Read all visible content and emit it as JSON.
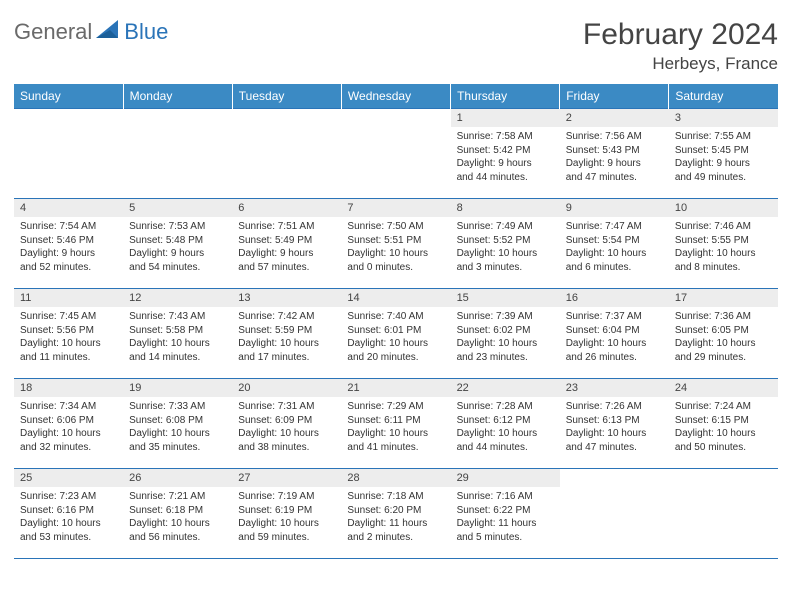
{
  "brand": {
    "general": "General",
    "blue": "Blue"
  },
  "title": "February 2024",
  "location": "Herbeys, France",
  "header_bg": "#3b8ac4",
  "accent_color": "#2a74b8",
  "daybar_bg": "#ededed",
  "text_color": "#333333",
  "days_of_week": [
    "Sunday",
    "Monday",
    "Tuesday",
    "Wednesday",
    "Thursday",
    "Friday",
    "Saturday"
  ],
  "weeks": [
    [
      null,
      null,
      null,
      null,
      {
        "n": "1",
        "sr": "Sunrise: 7:58 AM",
        "ss": "Sunset: 5:42 PM",
        "d1": "Daylight: 9 hours",
        "d2": "and 44 minutes."
      },
      {
        "n": "2",
        "sr": "Sunrise: 7:56 AM",
        "ss": "Sunset: 5:43 PM",
        "d1": "Daylight: 9 hours",
        "d2": "and 47 minutes."
      },
      {
        "n": "3",
        "sr": "Sunrise: 7:55 AM",
        "ss": "Sunset: 5:45 PM",
        "d1": "Daylight: 9 hours",
        "d2": "and 49 minutes."
      }
    ],
    [
      {
        "n": "4",
        "sr": "Sunrise: 7:54 AM",
        "ss": "Sunset: 5:46 PM",
        "d1": "Daylight: 9 hours",
        "d2": "and 52 minutes."
      },
      {
        "n": "5",
        "sr": "Sunrise: 7:53 AM",
        "ss": "Sunset: 5:48 PM",
        "d1": "Daylight: 9 hours",
        "d2": "and 54 minutes."
      },
      {
        "n": "6",
        "sr": "Sunrise: 7:51 AM",
        "ss": "Sunset: 5:49 PM",
        "d1": "Daylight: 9 hours",
        "d2": "and 57 minutes."
      },
      {
        "n": "7",
        "sr": "Sunrise: 7:50 AM",
        "ss": "Sunset: 5:51 PM",
        "d1": "Daylight: 10 hours",
        "d2": "and 0 minutes."
      },
      {
        "n": "8",
        "sr": "Sunrise: 7:49 AM",
        "ss": "Sunset: 5:52 PM",
        "d1": "Daylight: 10 hours",
        "d2": "and 3 minutes."
      },
      {
        "n": "9",
        "sr": "Sunrise: 7:47 AM",
        "ss": "Sunset: 5:54 PM",
        "d1": "Daylight: 10 hours",
        "d2": "and 6 minutes."
      },
      {
        "n": "10",
        "sr": "Sunrise: 7:46 AM",
        "ss": "Sunset: 5:55 PM",
        "d1": "Daylight: 10 hours",
        "d2": "and 8 minutes."
      }
    ],
    [
      {
        "n": "11",
        "sr": "Sunrise: 7:45 AM",
        "ss": "Sunset: 5:56 PM",
        "d1": "Daylight: 10 hours",
        "d2": "and 11 minutes."
      },
      {
        "n": "12",
        "sr": "Sunrise: 7:43 AM",
        "ss": "Sunset: 5:58 PM",
        "d1": "Daylight: 10 hours",
        "d2": "and 14 minutes."
      },
      {
        "n": "13",
        "sr": "Sunrise: 7:42 AM",
        "ss": "Sunset: 5:59 PM",
        "d1": "Daylight: 10 hours",
        "d2": "and 17 minutes."
      },
      {
        "n": "14",
        "sr": "Sunrise: 7:40 AM",
        "ss": "Sunset: 6:01 PM",
        "d1": "Daylight: 10 hours",
        "d2": "and 20 minutes."
      },
      {
        "n": "15",
        "sr": "Sunrise: 7:39 AM",
        "ss": "Sunset: 6:02 PM",
        "d1": "Daylight: 10 hours",
        "d2": "and 23 minutes."
      },
      {
        "n": "16",
        "sr": "Sunrise: 7:37 AM",
        "ss": "Sunset: 6:04 PM",
        "d1": "Daylight: 10 hours",
        "d2": "and 26 minutes."
      },
      {
        "n": "17",
        "sr": "Sunrise: 7:36 AM",
        "ss": "Sunset: 6:05 PM",
        "d1": "Daylight: 10 hours",
        "d2": "and 29 minutes."
      }
    ],
    [
      {
        "n": "18",
        "sr": "Sunrise: 7:34 AM",
        "ss": "Sunset: 6:06 PM",
        "d1": "Daylight: 10 hours",
        "d2": "and 32 minutes."
      },
      {
        "n": "19",
        "sr": "Sunrise: 7:33 AM",
        "ss": "Sunset: 6:08 PM",
        "d1": "Daylight: 10 hours",
        "d2": "and 35 minutes."
      },
      {
        "n": "20",
        "sr": "Sunrise: 7:31 AM",
        "ss": "Sunset: 6:09 PM",
        "d1": "Daylight: 10 hours",
        "d2": "and 38 minutes."
      },
      {
        "n": "21",
        "sr": "Sunrise: 7:29 AM",
        "ss": "Sunset: 6:11 PM",
        "d1": "Daylight: 10 hours",
        "d2": "and 41 minutes."
      },
      {
        "n": "22",
        "sr": "Sunrise: 7:28 AM",
        "ss": "Sunset: 6:12 PM",
        "d1": "Daylight: 10 hours",
        "d2": "and 44 minutes."
      },
      {
        "n": "23",
        "sr": "Sunrise: 7:26 AM",
        "ss": "Sunset: 6:13 PM",
        "d1": "Daylight: 10 hours",
        "d2": "and 47 minutes."
      },
      {
        "n": "24",
        "sr": "Sunrise: 7:24 AM",
        "ss": "Sunset: 6:15 PM",
        "d1": "Daylight: 10 hours",
        "d2": "and 50 minutes."
      }
    ],
    [
      {
        "n": "25",
        "sr": "Sunrise: 7:23 AM",
        "ss": "Sunset: 6:16 PM",
        "d1": "Daylight: 10 hours",
        "d2": "and 53 minutes."
      },
      {
        "n": "26",
        "sr": "Sunrise: 7:21 AM",
        "ss": "Sunset: 6:18 PM",
        "d1": "Daylight: 10 hours",
        "d2": "and 56 minutes."
      },
      {
        "n": "27",
        "sr": "Sunrise: 7:19 AM",
        "ss": "Sunset: 6:19 PM",
        "d1": "Daylight: 10 hours",
        "d2": "and 59 minutes."
      },
      {
        "n": "28",
        "sr": "Sunrise: 7:18 AM",
        "ss": "Sunset: 6:20 PM",
        "d1": "Daylight: 11 hours",
        "d2": "and 2 minutes."
      },
      {
        "n": "29",
        "sr": "Sunrise: 7:16 AM",
        "ss": "Sunset: 6:22 PM",
        "d1": "Daylight: 11 hours",
        "d2": "and 5 minutes."
      },
      null,
      null
    ]
  ]
}
